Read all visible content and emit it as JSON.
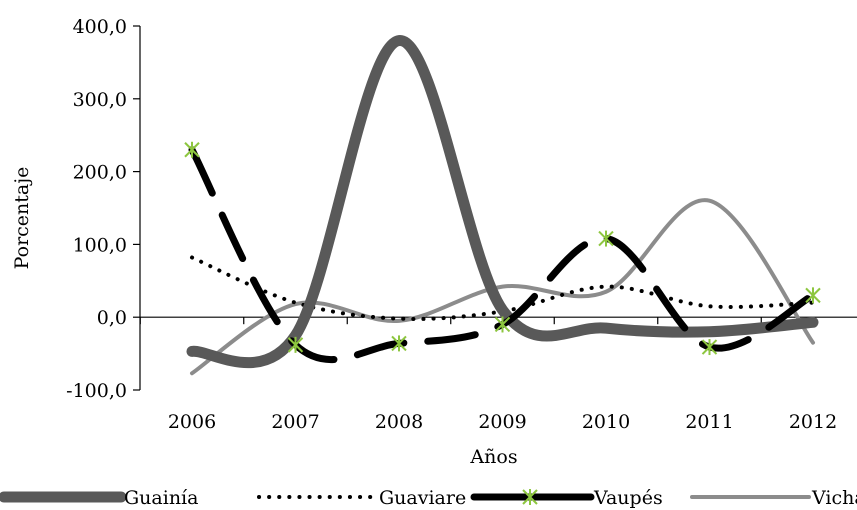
{
  "chart_data": {
    "type": "line",
    "title": "",
    "xlabel": "Años",
    "ylabel": "Porcentaje",
    "categories": [
      "2006",
      "2007",
      "2008",
      "2009",
      "2010",
      "2011",
      "2012"
    ],
    "ylim": [
      -100,
      400
    ],
    "yticks": [
      -100,
      0,
      100,
      200,
      300,
      400
    ],
    "ytick_labels": [
      "-100,0",
      "0,0",
      "100,0",
      "200,0",
      "300,0",
      "400,0"
    ],
    "grid": false,
    "legend_position": "bottom",
    "series": [
      {
        "name": "Guainía",
        "values": [
          -47,
          -25,
          380,
          10,
          -15,
          -20,
          -7
        ],
        "color": "#595959",
        "style": "solid-thick"
      },
      {
        "name": "Guaviare",
        "values": [
          82,
          20,
          -2,
          8,
          42,
          15,
          20
        ],
        "color": "#000000",
        "style": "dotted"
      },
      {
        "name": "Vaupés",
        "values": [
          230,
          -38,
          -36,
          -10,
          108,
          -41,
          30
        ],
        "color": "#000000",
        "style": "dashed",
        "marker_color": "#8dc63f"
      },
      {
        "name": "Vichada",
        "values": [
          -77,
          18,
          -5,
          42,
          35,
          160,
          -35
        ],
        "color": "#8c8c8c",
        "style": "solid"
      }
    ]
  }
}
